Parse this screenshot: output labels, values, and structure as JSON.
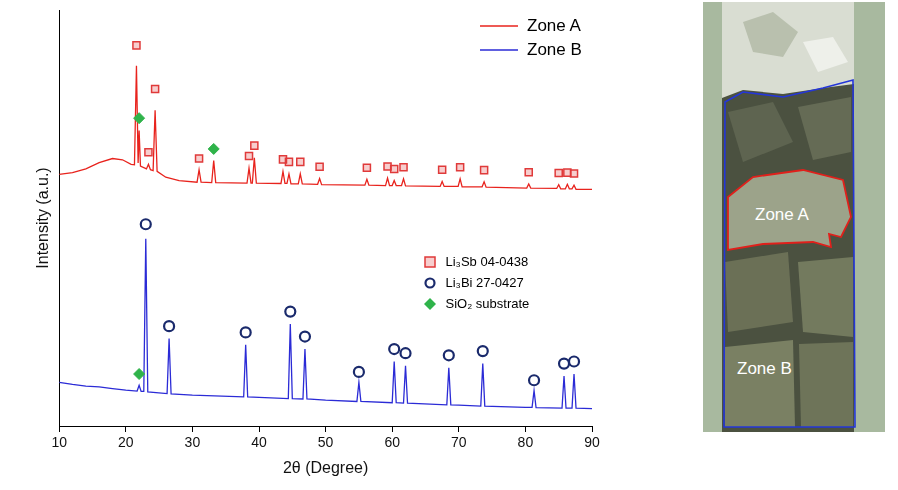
{
  "chart_data": {
    "type": "line",
    "xlabel": "2θ (Degree)",
    "ylabel": "Intensity (a.u.)",
    "xlim": [
      10,
      90
    ],
    "xticks": [
      10,
      20,
      30,
      40,
      50,
      60,
      70,
      80,
      90
    ],
    "ylim": [
      0,
      100
    ],
    "tick_labels": "x",
    "grid": false,
    "legend": "top-right",
    "series": [
      {
        "name": "Zone A",
        "type": "line",
        "color": "#e8231d",
        "x": [
          10,
          12,
          14,
          16,
          18,
          19.5,
          20.8,
          21.3,
          21.6,
          21.85,
          22.0,
          22.2,
          23.1,
          23.4,
          23.7,
          24.1,
          24.4,
          24.7,
          26,
          28,
          30.7,
          31.0,
          31.3,
          32.9,
          33.2,
          33.5,
          38.2,
          38.5,
          38.8,
          39.0,
          39.3,
          39.6,
          43.3,
          43.6,
          43.9,
          44.2,
          44.5,
          44.8,
          45.9,
          46.2,
          46.5,
          48.8,
          49.1,
          49.4,
          55.9,
          56.2,
          56.5,
          59.0,
          59.3,
          59.6,
          60.0,
          60.3,
          60.6,
          61.4,
          61.7,
          62.0,
          67.2,
          67.5,
          67.8,
          69.9,
          70.2,
          70.5,
          73.5,
          73.8,
          74.1,
          80.2,
          80.5,
          80.8,
          84.7,
          85.0,
          85.3,
          86.0,
          86.3,
          86.6,
          87.0,
          87.3,
          87.6,
          90
        ],
        "values": [
          60.5,
          60.9,
          61.8,
          63.3,
          64.3,
          64.0,
          62.9,
          62.8,
          86.6,
          63.2,
          71.0,
          62.5,
          61.8,
          62.9,
          61.6,
          61.4,
          75.9,
          61.2,
          59.8,
          59.0,
          58.6,
          61.6,
          58.6,
          58.5,
          63.8,
          58.5,
          58.4,
          62.0,
          58.4,
          58.4,
          64.5,
          58.4,
          58.3,
          61.2,
          58.3,
          58.3,
          60.6,
          58.2,
          58.2,
          60.6,
          58.2,
          58.1,
          59.5,
          58.0,
          57.9,
          59.3,
          57.9,
          57.8,
          59.6,
          57.8,
          57.8,
          59.0,
          57.8,
          57.8,
          59.4,
          57.7,
          57.6,
          58.8,
          57.6,
          57.6,
          59.4,
          57.5,
          57.5,
          58.7,
          57.4,
          57.2,
          58.2,
          57.2,
          57.1,
          58.0,
          57.0,
          57.0,
          58.1,
          57.0,
          57.0,
          57.9,
          56.9,
          56.9
        ]
      },
      {
        "name": "Zone B",
        "type": "line",
        "color": "#2b2bd6",
        "x": [
          10,
          12,
          14,
          16,
          18,
          20,
          21.7,
          22.0,
          22.3,
          22.7,
          23.0,
          23.3,
          26.2,
          26.5,
          26.8,
          30,
          37.7,
          38.0,
          38.3,
          40,
          44.4,
          44.7,
          45.0,
          46.6,
          46.9,
          47.2,
          50,
          54.7,
          55.0,
          55.3,
          60.0,
          60.3,
          60.6,
          61.7,
          62.0,
          62.3,
          68.2,
          68.5,
          68.8,
          70,
          73.3,
          73.6,
          73.9,
          80,
          81.0,
          81.3,
          81.6,
          85.5,
          85.8,
          86.1,
          87.0,
          87.3,
          87.6,
          90
        ],
        "values": [
          10.5,
          10.0,
          9.6,
          9.4,
          9.0,
          8.6,
          8.4,
          9.8,
          8.3,
          8.3,
          45.0,
          8.2,
          7.8,
          21.0,
          7.7,
          7.4,
          7.0,
          19.5,
          7.0,
          6.9,
          6.6,
          24.5,
          6.6,
          6.5,
          18.5,
          6.5,
          6.2,
          5.9,
          10.5,
          5.9,
          5.6,
          15.5,
          5.6,
          5.5,
          14.5,
          5.5,
          5.1,
          14.0,
          5.1,
          5.0,
          4.8,
          15.0,
          4.8,
          4.5,
          4.5,
          8.5,
          4.4,
          4.3,
          12.0,
          4.3,
          4.3,
          12.5,
          4.3,
          4.2
        ]
      },
      {
        "name": "Li₃Sb 04-0438",
        "type": "scatter",
        "marker": "square",
        "color": "#e03a3a",
        "x": [
          21.6,
          23.4,
          24.4,
          31.0,
          38.5,
          39.3,
          43.6,
          44.5,
          46.2,
          49.1,
          56.2,
          59.3,
          60.3,
          61.7,
          67.5,
          70.2,
          73.8,
          80.5,
          85.0,
          86.3,
          87.3
        ],
        "values": [
          91.5,
          65.8,
          81.0,
          64.3,
          64.9,
          67.4,
          64.1,
          63.5,
          63.5,
          62.3,
          62.1,
          62.4,
          61.8,
          62.2,
          61.6,
          62.2,
          61.5,
          61.0,
          60.8,
          60.9,
          60.7
        ]
      },
      {
        "name": "Li₃Bi 27-0427",
        "type": "scatter",
        "marker": "circle",
        "color": "#1a2a6c",
        "x": [
          23.0,
          26.5,
          38.0,
          44.7,
          46.9,
          55.0,
          60.3,
          62.0,
          68.5,
          73.6,
          81.3,
          85.8,
          87.3
        ],
        "values": [
          48.5,
          24.0,
          22.5,
          27.5,
          21.5,
          13.0,
          18.5,
          17.5,
          17.0,
          18.0,
          11.0,
          15.0,
          15.5
        ]
      },
      {
        "name": "SiO₂ substrate",
        "type": "scatter",
        "marker": "diamond",
        "color": "#2fb34a",
        "x": [
          22.0,
          33.2,
          22.0
        ],
        "values": [
          74.0,
          66.6,
          12.5
        ]
      }
    ]
  },
  "image": {
    "zones": [
      {
        "label": "Zone A",
        "color": "#e0201b"
      },
      {
        "label": "Zone B",
        "color": "#2436d8"
      }
    ]
  }
}
